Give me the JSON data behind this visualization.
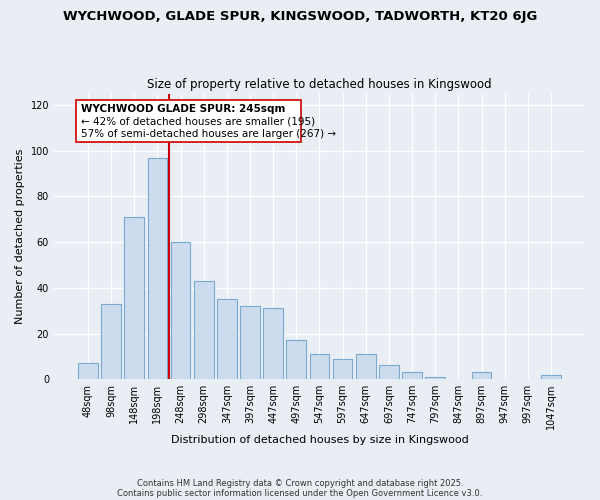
{
  "title": "WYCHWOOD, GLADE SPUR, KINGSWOOD, TADWORTH, KT20 6JG",
  "subtitle": "Size of property relative to detached houses in Kingswood",
  "xlabel": "Distribution of detached houses by size in Kingswood",
  "ylabel": "Number of detached properties",
  "bar_color": "#ccdcee",
  "bar_edge_color": "#7aaad0",
  "marker_color": "#cc0000",
  "annotation_title": "WYCHWOOD GLADE SPUR: 245sqm",
  "annotation_line1": "← 42% of detached houses are smaller (195)",
  "annotation_line2": "57% of semi-detached houses are larger (267) →",
  "categories": [
    "48sqm",
    "98sqm",
    "148sqm",
    "198sqm",
    "248sqm",
    "298sqm",
    "347sqm",
    "397sqm",
    "447sqm",
    "497sqm",
    "547sqm",
    "597sqm",
    "647sqm",
    "697sqm",
    "747sqm",
    "797sqm",
    "847sqm",
    "897sqm",
    "947sqm",
    "997sqm",
    "1047sqm"
  ],
  "values": [
    7,
    33,
    71,
    97,
    60,
    43,
    35,
    32,
    31,
    17,
    11,
    9,
    11,
    6,
    3,
    1,
    0,
    3,
    0,
    0,
    2
  ],
  "marker_bar_idx": 4,
  "ylim": [
    0,
    125
  ],
  "yticks": [
    0,
    20,
    40,
    60,
    80,
    100,
    120
  ],
  "bg_color": "#e8eef4",
  "footer1": "Contains HM Land Registry data © Crown copyright and database right 2025.",
  "footer2": "Contains public sector information licensed under the Open Government Licence v3.0."
}
